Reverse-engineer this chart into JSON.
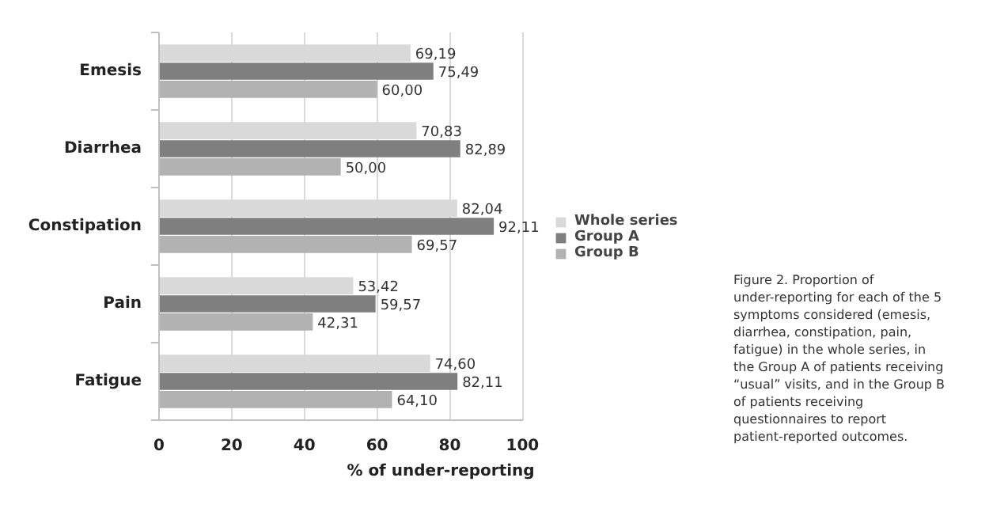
{
  "chart_data": {
    "type": "bar",
    "orientation": "horizontal",
    "xlabel": "% of under-reporting",
    "categories": [
      "Emesis",
      "Diarrhea",
      "Constipation",
      "Pain",
      "Fatigue"
    ],
    "series": [
      {
        "name": "Whole series",
        "color": "#d9d9d9",
        "values": [
          69.19,
          70.83,
          82.04,
          53.42,
          74.6
        ],
        "value_labels": [
          "69,19",
          "70,83",
          "82,04",
          "53,42",
          "74,60"
        ]
      },
      {
        "name": "Group A",
        "color": "#7f7f7f",
        "values": [
          75.49,
          82.89,
          92.11,
          59.57,
          82.11
        ],
        "value_labels": [
          "75,49",
          "82,89",
          "92,11",
          "59,57",
          "82,11"
        ]
      },
      {
        "name": "Group B",
        "color": "#b2b2b2",
        "values": [
          60.0,
          50.0,
          69.57,
          42.31,
          64.1
        ],
        "value_labels": [
          "60,00",
          "50,00",
          "69,57",
          "42,31",
          "64,10"
        ]
      }
    ],
    "xlim": [
      0,
      100
    ],
    "xticks": [
      0,
      20,
      40,
      60,
      80,
      100
    ],
    "grid": "x",
    "legend": "right",
    "annotations": [
      "Figure 2. Proportion of under-reporting for each of the 5 symptoms considered (emesis, diarrhea, constipation, pain, fatigue) in the whole series, in the Group A of patients receiving “usual” visits, and in the Group B of patients receiving questionnaires to report patient-reported outcomes."
    ]
  }
}
